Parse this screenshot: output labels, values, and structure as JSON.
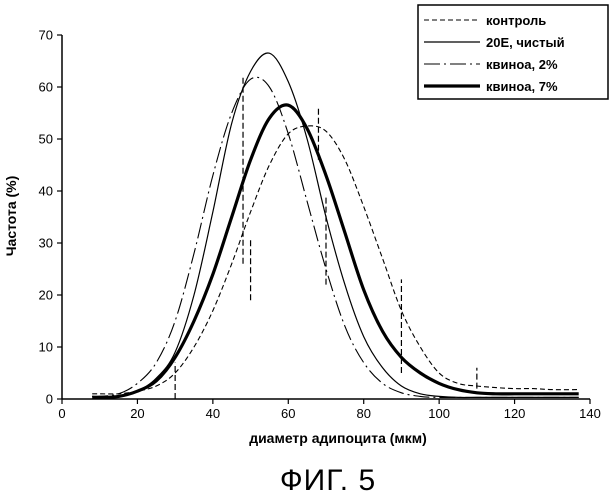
{
  "chart_data": {
    "type": "line",
    "xlabel": "диаметр адипоцита (мкм)",
    "ylabel": "Частота (%)",
    "xlim": [
      0,
      140
    ],
    "ylim": [
      0,
      70
    ],
    "xticks": [
      0,
      20,
      40,
      60,
      80,
      100,
      120,
      140
    ],
    "yticks": [
      0,
      10,
      20,
      30,
      40,
      50,
      60,
      70
    ],
    "grid": false,
    "legend_position": "top-right",
    "caption": "ФИГ. 5",
    "x": [
      8,
      10,
      15,
      20,
      25,
      30,
      35,
      40,
      45,
      50,
      55,
      60,
      65,
      70,
      75,
      80,
      85,
      90,
      95,
      100,
      105,
      110,
      115,
      120,
      125,
      130,
      137
    ],
    "series": [
      {
        "name": "контроль",
        "style": "short-dash-thin",
        "values": [
          1.0,
          1.0,
          1.0,
          1.5,
          2.5,
          5,
          10,
          17,
          26,
          36,
          45,
          51,
          52.5,
          51.5,
          46,
          37,
          27,
          17,
          10,
          5,
          3,
          2.5,
          2.2,
          2.0,
          2.0,
          1.8,
          1.8
        ]
      },
      {
        "name": "20E, чистый",
        "style": "solid-thin",
        "values": [
          0.5,
          0.5,
          0.5,
          1.5,
          4,
          9,
          20,
          36,
          53,
          63,
          66.5,
          61,
          50,
          35,
          22,
          12,
          6,
          2.5,
          1,
          0.5,
          0.3,
          0.3,
          0.3,
          0.3,
          0.3,
          0.3,
          0.3
        ]
      },
      {
        "name": "квиноа, 2%",
        "style": "long-dash-thin",
        "values": [
          0.5,
          0.5,
          1,
          3,
          7,
          15,
          28,
          43,
          55,
          61.5,
          60,
          51,
          38,
          25,
          14,
          7,
          3,
          1.2,
          0.5,
          0.3,
          0.3,
          0.3,
          0.3,
          0.3,
          0.3,
          0.3,
          0.3
        ]
      },
      {
        "name": "квиноа, 7%",
        "style": "solid-thick",
        "values": [
          0.3,
          0.3,
          0.5,
          1.5,
          3.5,
          8,
          15,
          24,
          35,
          46,
          54,
          56.5,
          52,
          43,
          32,
          21,
          13,
          8,
          5,
          3,
          1.8,
          1.2,
          1.0,
          1.0,
          1.0,
          1.0,
          1.0
        ]
      }
    ],
    "error_bars": [
      {
        "x": 48,
        "y_low": 26,
        "y_high": 62
      },
      {
        "x": 50,
        "y_low": 19,
        "y_high": 31
      },
      {
        "x": 30,
        "y_low": 0,
        "y_high": 7
      },
      {
        "x": 68,
        "y_low": 46,
        "y_high": 56
      },
      {
        "x": 70,
        "y_low": 22,
        "y_high": 39
      },
      {
        "x": 90,
        "y_low": 5,
        "y_high": 23
      },
      {
        "x": 110,
        "y_low": 2,
        "y_high": 6
      }
    ]
  }
}
